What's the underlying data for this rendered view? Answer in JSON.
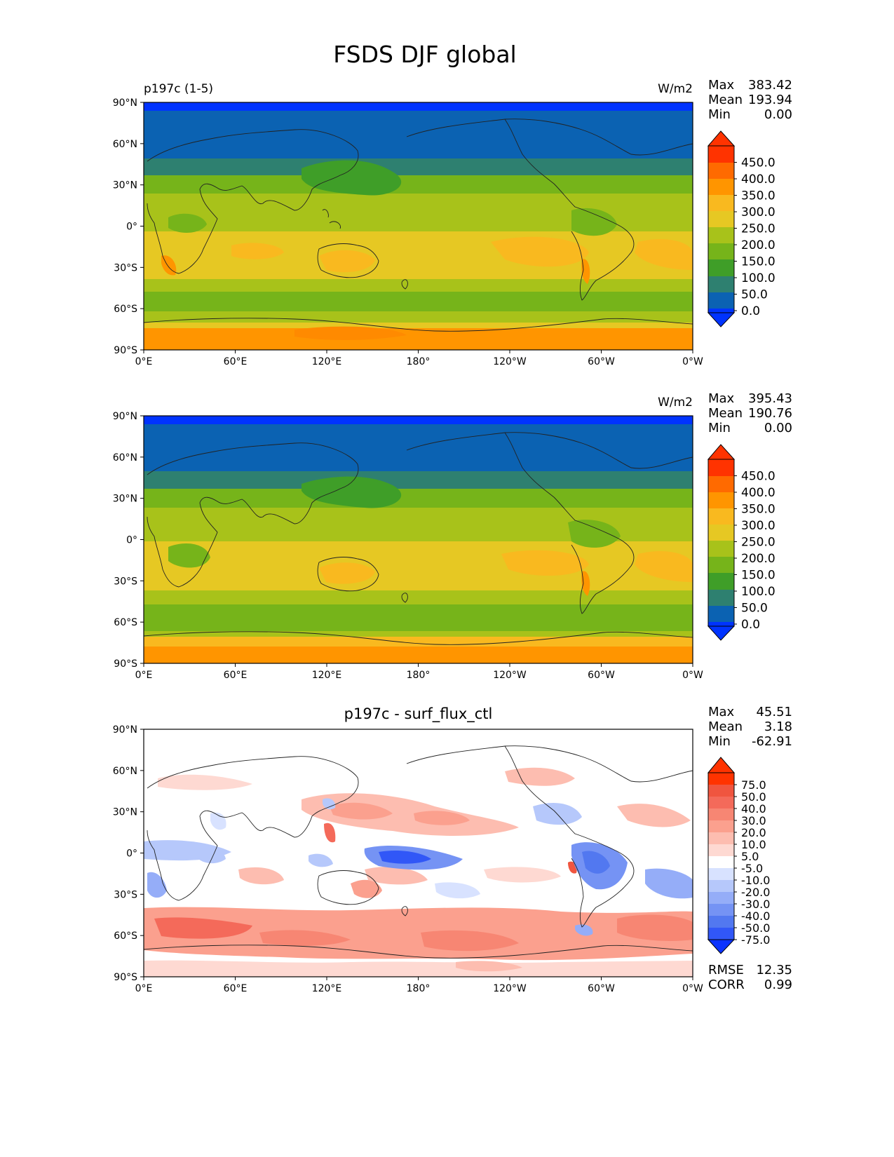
{
  "title": "FSDS DJF global",
  "x_ticks": [
    "0°E",
    "60°E",
    "120°E",
    "180°",
    "120°W",
    "60°W",
    "0°W"
  ],
  "y_ticks": [
    "90°N",
    "60°N",
    "30°N",
    "0°",
    "30°S",
    "60°S",
    "90°S"
  ],
  "stat_labels": {
    "max": "Max",
    "mean": "Mean",
    "min": "Min",
    "rmse": "RMSE",
    "corr": "CORR"
  },
  "panels": [
    {
      "left_title": "p197c (1-5)",
      "units": "W/m2",
      "stats": {
        "max": "383.42",
        "mean": "193.94",
        "min": "0.00"
      },
      "colorbar": {
        "labels": [
          "450.0",
          "400.0",
          "350.0",
          "300.0",
          "250.0",
          "200.0",
          "150.0",
          "100.0",
          "50.0",
          "0.0"
        ],
        "colors": [
          "#ff3300",
          "#ff6a00",
          "#ff9500",
          "#f9b91f",
          "#e6c823",
          "#a8c21a",
          "#76b41a",
          "#3f9e28",
          "#2e8070",
          "#0b62b2",
          "#0033ff"
        ]
      }
    },
    {
      "left_title": "",
      "units": "W/m2",
      "stats": {
        "max": "395.43",
        "mean": "190.76",
        "min": "0.00"
      },
      "colorbar": {
        "labels": [
          "450.0",
          "400.0",
          "350.0",
          "300.0",
          "250.0",
          "200.0",
          "150.0",
          "100.0",
          "50.0",
          "0.0"
        ],
        "colors": [
          "#ff3300",
          "#ff6a00",
          "#ff9500",
          "#f9b91f",
          "#e6c823",
          "#a8c21a",
          "#76b41a",
          "#3f9e28",
          "#2e8070",
          "#0b62b2",
          "#0033ff"
        ]
      }
    },
    {
      "center_title": "p197c - surf_flux_ctl",
      "stats": {
        "max": "45.51",
        "mean": "3.18",
        "min": "-62.91",
        "rmse": "12.35",
        "corr": "0.99"
      },
      "colorbar": {
        "labels": [
          "75.0",
          "50.0",
          "40.0",
          "30.0",
          "20.0",
          "10.0",
          "5.0",
          "-5.0",
          "-10.0",
          "-20.0",
          "-30.0",
          "-40.0",
          "-50.0",
          "-75.0"
        ],
        "colors": [
          "#ff3300",
          "#f0553f",
          "#f46a5a",
          "#f78673",
          "#fba08e",
          "#fdbdb0",
          "#fed9d2",
          "#ffffff",
          "#d8e2ff",
          "#b6c8fb",
          "#95adf8",
          "#7593f4",
          "#5278f0",
          "#3157f7",
          "#0b33ff"
        ]
      }
    }
  ]
}
